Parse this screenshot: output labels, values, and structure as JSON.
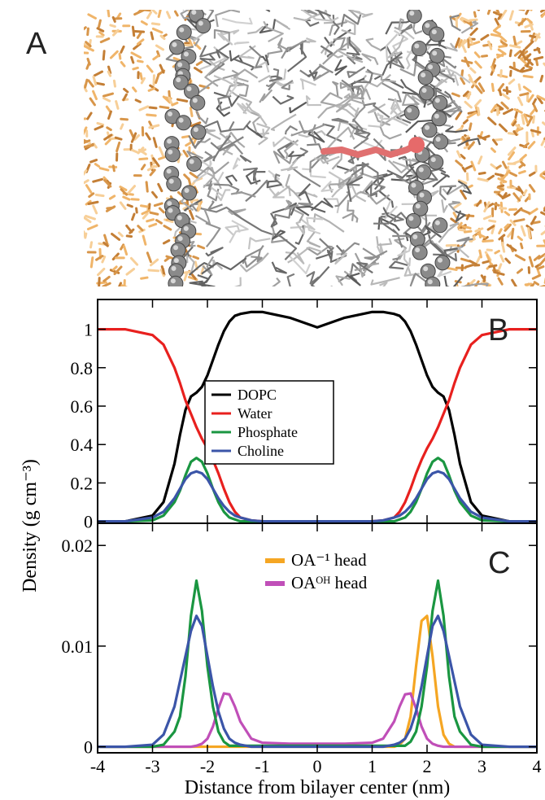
{
  "panel_a": {
    "label": "A"
  },
  "chart_data": [
    {
      "type": "line",
      "panel_label": "B",
      "ylabel": "Density (g cm⁻³)",
      "x": [
        -4,
        -3.5,
        -3,
        -2.8,
        -2.6,
        -2.5,
        -2.4,
        -2.3,
        -2.2,
        -2.1,
        -2.0,
        -1.9,
        -1.8,
        -1.7,
        -1.6,
        -1.5,
        -1.4,
        -1.2,
        -1,
        -0.5,
        0,
        0.5,
        1,
        1.2,
        1.4,
        1.5,
        1.6,
        1.7,
        1.8,
        1.9,
        2.0,
        2.1,
        2.2,
        2.3,
        2.4,
        2.5,
        2.6,
        2.8,
        3,
        3.5,
        4
      ],
      "xlim": [
        -4,
        4
      ],
      "ylim": [
        -0.01,
        1.155
      ],
      "xticks": [
        -4,
        -3,
        -2,
        -1,
        0,
        1,
        2,
        3,
        4
      ],
      "xtick_labels": false,
      "yticks": [
        0,
        0.2,
        0.4,
        0.6,
        0.8,
        1
      ],
      "legend": "center",
      "legend_frame": true,
      "series": [
        {
          "name": "DOPC",
          "color": "#000000",
          "values": [
            0,
            0,
            0.03,
            0.1,
            0.3,
            0.45,
            0.58,
            0.65,
            0.67,
            0.7,
            0.76,
            0.84,
            0.92,
            0.99,
            1.04,
            1.07,
            1.08,
            1.09,
            1.09,
            1.06,
            1.01,
            1.06,
            1.09,
            1.09,
            1.08,
            1.07,
            1.04,
            0.99,
            0.92,
            0.84,
            0.76,
            0.7,
            0.67,
            0.65,
            0.58,
            0.45,
            0.3,
            0.1,
            0.03,
            0,
            0
          ]
        },
        {
          "name": "Water",
          "color": "#e8201e",
          "values": [
            1,
            1,
            0.97,
            0.92,
            0.8,
            0.72,
            0.63,
            0.56,
            0.49,
            0.43,
            0.38,
            0.32,
            0.25,
            0.17,
            0.1,
            0.05,
            0.02,
            0.005,
            0,
            0,
            0,
            0,
            0,
            0.005,
            0.02,
            0.05,
            0.1,
            0.17,
            0.25,
            0.32,
            0.38,
            0.43,
            0.49,
            0.56,
            0.63,
            0.72,
            0.8,
            0.92,
            0.97,
            1,
            1
          ]
        },
        {
          "name": "Phosphate",
          "color": "#1a9641",
          "values": [
            0,
            0,
            0.005,
            0.03,
            0.1,
            0.16,
            0.24,
            0.31,
            0.33,
            0.31,
            0.25,
            0.17,
            0.1,
            0.05,
            0.02,
            0.01,
            0,
            0,
            0,
            0,
            0,
            0,
            0,
            0,
            0,
            0.01,
            0.02,
            0.05,
            0.1,
            0.17,
            0.25,
            0.31,
            0.33,
            0.31,
            0.24,
            0.16,
            0.1,
            0.03,
            0.005,
            0,
            0
          ]
        },
        {
          "name": "Choline",
          "color": "#3b55a8",
          "values": [
            0,
            0,
            0.02,
            0.05,
            0.12,
            0.17,
            0.22,
            0.25,
            0.26,
            0.25,
            0.22,
            0.17,
            0.12,
            0.08,
            0.05,
            0.03,
            0.02,
            0.005,
            0,
            0,
            0,
            0,
            0,
            0.005,
            0.02,
            0.03,
            0.05,
            0.08,
            0.12,
            0.17,
            0.22,
            0.25,
            0.26,
            0.25,
            0.22,
            0.17,
            0.12,
            0.05,
            0.02,
            0,
            0
          ]
        }
      ]
    },
    {
      "type": "line",
      "panel_label": "C",
      "xlabel": "Distance from bilayer center (nm)",
      "x": [
        -4,
        -3.5,
        -3,
        -2.8,
        -2.6,
        -2.5,
        -2.4,
        -2.3,
        -2.2,
        -2.1,
        -2.0,
        -1.9,
        -1.8,
        -1.7,
        -1.6,
        -1.5,
        -1.4,
        -1.2,
        -1,
        -0.5,
        0,
        0.5,
        1,
        1.2,
        1.4,
        1.5,
        1.6,
        1.7,
        1.8,
        1.9,
        2.0,
        2.1,
        2.2,
        2.3,
        2.4,
        2.5,
        2.6,
        2.8,
        3,
        3.5,
        4
      ],
      "xlim": [
        -4,
        4
      ],
      "ylim": [
        -0.0006,
        0.0222
      ],
      "xticks": [
        -4,
        -3,
        -2,
        -1,
        0,
        1,
        2,
        3,
        4
      ],
      "xtick_labels": true,
      "yticks": [
        0,
        0.01,
        0.02
      ],
      "legend": "upper-center",
      "legend_frame": false,
      "series": [
        {
          "name": "OA⁻¹ head",
          "color": "#f5a623",
          "values": [
            0,
            0,
            0,
            0,
            0,
            0,
            0,
            0,
            0,
            0,
            0,
            0,
            0,
            0,
            0,
            0,
            0,
            0,
            0,
            0,
            0,
            0,
            0,
            0,
            0,
            0.0002,
            0.0008,
            0.003,
            0.008,
            0.0125,
            0.013,
            0.009,
            0.004,
            0.0012,
            0.0003,
            0,
            0,
            0,
            0,
            0,
            0
          ]
        },
        {
          "name": "OAᴼᴴ head",
          "color": "#c04fb8",
          "values": [
            0,
            0,
            0,
            0,
            0,
            0,
            0,
            0,
            0.0001,
            0.0003,
            0.0008,
            0.002,
            0.0038,
            0.0053,
            0.0052,
            0.004,
            0.0025,
            0.0008,
            0.0004,
            0.0003,
            0.0003,
            0.0003,
            0.0004,
            0.0008,
            0.0025,
            0.004,
            0.0052,
            0.0053,
            0.0038,
            0.002,
            0.0008,
            0.0003,
            0.0001,
            0,
            0,
            0,
            0,
            0,
            0,
            0,
            0
          ]
        },
        {
          "name": "Phosphate",
          "color": "#1a9641",
          "legend": false,
          "values": [
            0,
            0,
            0,
            0.0002,
            0.0015,
            0.003,
            0.007,
            0.013,
            0.0165,
            0.0135,
            0.008,
            0.004,
            0.0015,
            0.0005,
            0.0001,
            0.0001,
            0.0001,
            0.0001,
            0.0001,
            0.0001,
            0.0001,
            0.0001,
            0.0001,
            0.0001,
            0.0001,
            0.0001,
            0.0001,
            0.0005,
            0.0015,
            0.004,
            0.008,
            0.0135,
            0.0165,
            0.013,
            0.007,
            0.003,
            0.0015,
            0.0002,
            0,
            0,
            0
          ]
        },
        {
          "name": "Choline",
          "color": "#3b55a8",
          "legend": false,
          "values": [
            0,
            0,
            0.0002,
            0.0012,
            0.004,
            0.0065,
            0.009,
            0.0115,
            0.013,
            0.012,
            0.009,
            0.006,
            0.0035,
            0.0018,
            0.0008,
            0.0004,
            0.0002,
            0,
            0,
            0,
            0,
            0,
            0,
            0,
            0.0002,
            0.0004,
            0.0008,
            0.0018,
            0.0035,
            0.006,
            0.009,
            0.012,
            0.013,
            0.0115,
            0.009,
            0.0065,
            0.004,
            0.0012,
            0.0002,
            0,
            0
          ]
        }
      ]
    }
  ]
}
